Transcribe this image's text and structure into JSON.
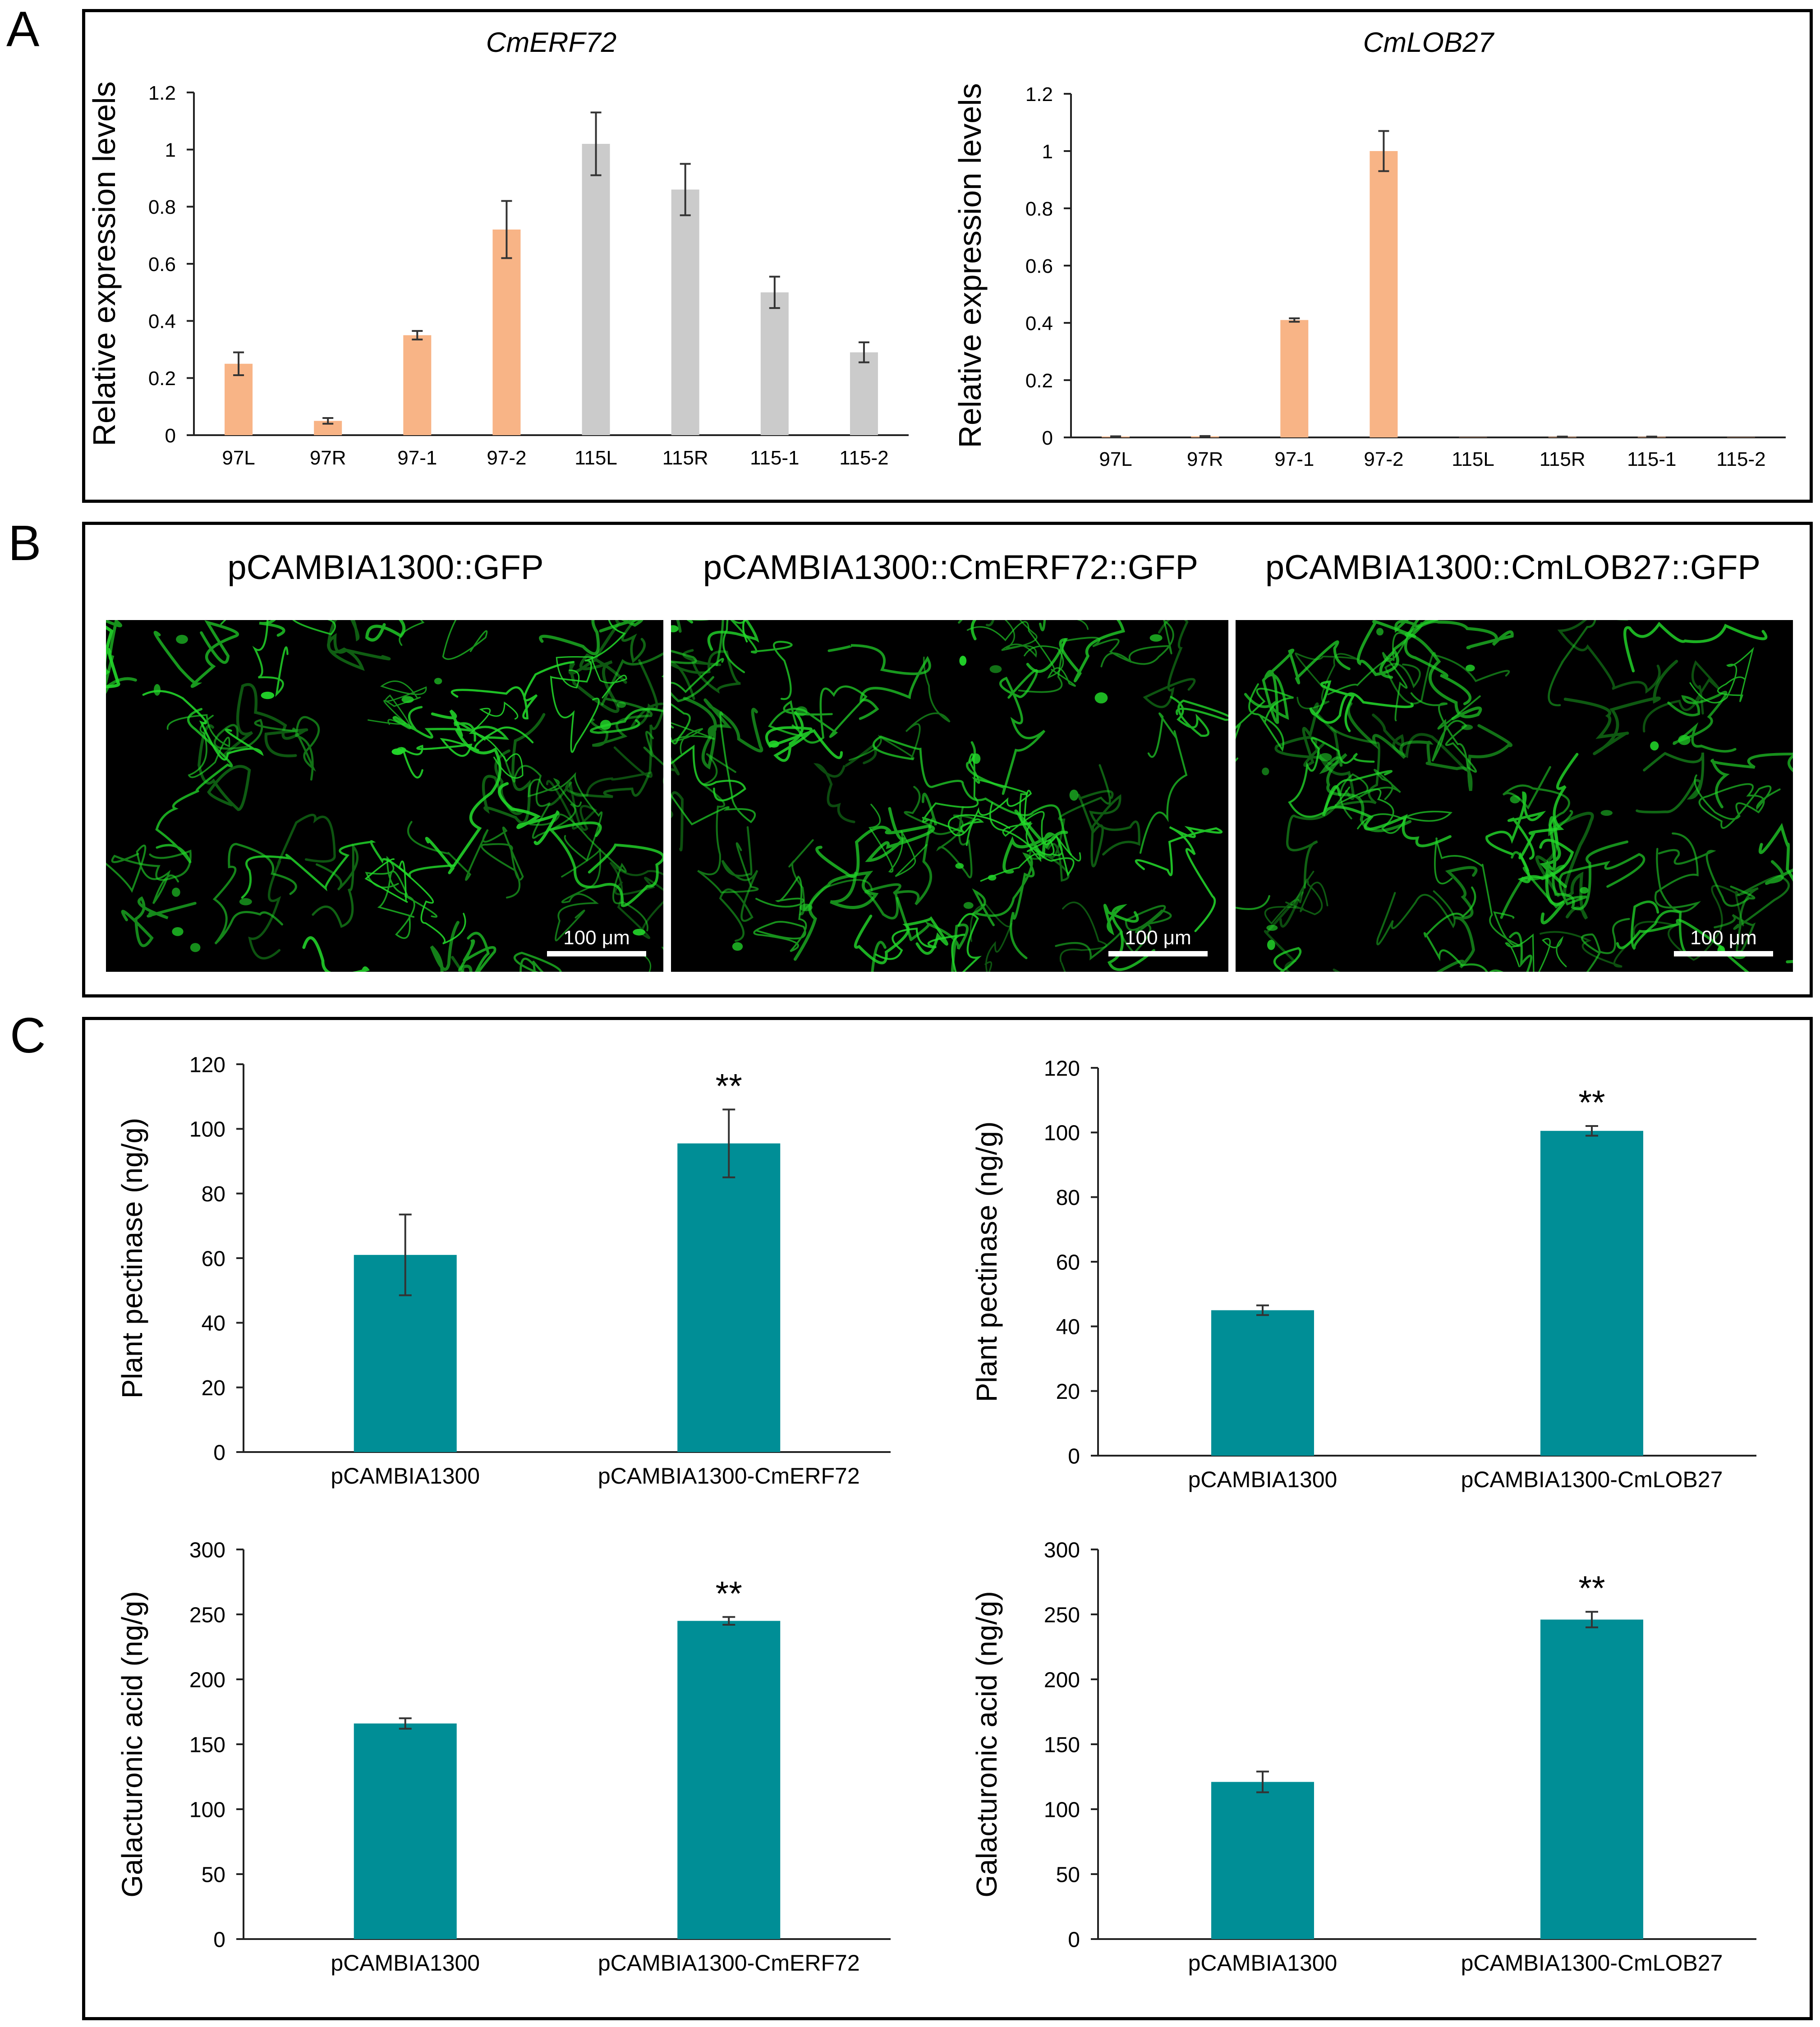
{
  "panel_labels": {
    "A": "A",
    "B": "B",
    "C": "C"
  },
  "colors": {
    "orange": "#F8B486",
    "grey": "#CBCBCB",
    "teal": "#008E96",
    "gfp": "#22d82a"
  },
  "chart_data": [
    {
      "id": "A1",
      "type": "bar",
      "title": "CmERF72",
      "xlabel": "",
      "ylabel": "Relative expression levels",
      "ylim": [
        0,
        1.2
      ],
      "yticks": [
        0,
        0.2,
        0.4,
        0.6,
        0.8,
        1,
        1.2
      ],
      "ytick_labels": [
        "0",
        "0.2",
        "0.4",
        "0.6",
        "0.8",
        "1",
        "1.2"
      ],
      "categories": [
        "97L",
        "97R",
        "97-1",
        "97-2",
        "115L",
        "115R",
        "115-1",
        "115-2"
      ],
      "values": [
        0.25,
        0.05,
        0.35,
        0.72,
        1.02,
        0.86,
        0.5,
        0.29
      ],
      "errors": [
        0.04,
        0.01,
        0.015,
        0.1,
        0.11,
        0.09,
        0.055,
        0.035
      ],
      "bar_colors": [
        "orange",
        "orange",
        "orange",
        "orange",
        "grey",
        "grey",
        "grey",
        "grey"
      ],
      "annotations": []
    },
    {
      "id": "A2",
      "type": "bar",
      "title": "CmLOB27",
      "xlabel": "",
      "ylabel": "Relative expression levels",
      "ylim": [
        0,
        1.2
      ],
      "yticks": [
        0,
        0.2,
        0.4,
        0.6,
        0.8,
        1,
        1.2
      ],
      "ytick_labels": [
        "0",
        "0.2",
        "0.4",
        "0.6",
        "0.8",
        "1",
        "1.2"
      ],
      "categories": [
        "97L",
        "97R",
        "97-1",
        "97-2",
        "115L",
        "115R",
        "115-1",
        "115-2"
      ],
      "values": [
        0.003,
        0.004,
        0.41,
        1.0,
        0.001,
        0.002,
        0.002,
        0.001
      ],
      "errors": [
        0.001,
        0.001,
        0.006,
        0.07,
        0.0,
        0.001,
        0.001,
        0.0
      ],
      "bar_colors": [
        "orange",
        "orange",
        "orange",
        "orange",
        "orange",
        "orange",
        "orange",
        "orange"
      ],
      "annotations": []
    },
    {
      "id": "C1",
      "type": "bar",
      "title": "",
      "xlabel": "",
      "ylabel": "Plant pectinase (ng/g)",
      "ylim": [
        0,
        120
      ],
      "yticks": [
        0,
        20,
        40,
        60,
        80,
        100,
        120
      ],
      "ytick_labels": [
        "0",
        "20",
        "40",
        "60",
        "80",
        "100",
        "120"
      ],
      "categories": [
        "pCAMBIA1300",
        "pCAMBIA1300-CmERF72"
      ],
      "values": [
        61,
        95.5
      ],
      "errors": [
        12.5,
        10.5
      ],
      "bar_colors": [
        "teal",
        "teal"
      ],
      "annotations": [
        "",
        "**"
      ]
    },
    {
      "id": "C2",
      "type": "bar",
      "title": "",
      "xlabel": "",
      "ylabel": "Plant pectinase (ng/g)",
      "ylim": [
        0,
        120
      ],
      "yticks": [
        0,
        20,
        40,
        60,
        80,
        100,
        120
      ],
      "ytick_labels": [
        "0",
        "20",
        "40",
        "60",
        "80",
        "100",
        "120"
      ],
      "categories": [
        "pCAMBIA1300",
        "pCAMBIA1300-CmLOB27"
      ],
      "values": [
        45,
        100.5
      ],
      "errors": [
        1.5,
        1.5
      ],
      "bar_colors": [
        "teal",
        "teal"
      ],
      "annotations": [
        "",
        "**"
      ]
    },
    {
      "id": "C3",
      "type": "bar",
      "title": "",
      "xlabel": "",
      "ylabel": "Galacturonic acid (ng/g)",
      "ylim": [
        0,
        300
      ],
      "yticks": [
        0,
        50,
        100,
        150,
        200,
        250,
        300
      ],
      "ytick_labels": [
        "0",
        "50",
        "100",
        "150",
        "200",
        "250",
        "300"
      ],
      "categories": [
        "pCAMBIA1300",
        "pCAMBIA1300-CmERF72"
      ],
      "values": [
        166,
        245
      ],
      "errors": [
        4,
        3
      ],
      "bar_colors": [
        "teal",
        "teal"
      ],
      "annotations": [
        "",
        "**"
      ]
    },
    {
      "id": "C4",
      "type": "bar",
      "title": "",
      "xlabel": "",
      "ylabel": "Galacturonic acid (ng/g)",
      "ylim": [
        0,
        300
      ],
      "yticks": [
        0,
        50,
        100,
        150,
        200,
        250,
        300
      ],
      "ytick_labels": [
        "0",
        "50",
        "100",
        "150",
        "200",
        "250",
        "300"
      ],
      "categories": [
        "pCAMBIA1300",
        "pCAMBIA1300-CmLOB27"
      ],
      "values": [
        121,
        246
      ],
      "errors": [
        8,
        6
      ],
      "bar_colors": [
        "teal",
        "teal"
      ],
      "annotations": [
        "",
        "**"
      ]
    }
  ],
  "microscopy": {
    "images": [
      {
        "title": "pCAMBIA1300::GFP",
        "scale_bar": "100 μm"
      },
      {
        "title": "pCAMBIA1300::CmERF72::GFP",
        "scale_bar": "100 μm"
      },
      {
        "title": "pCAMBIA1300::CmLOB27::GFP",
        "scale_bar": "100 μm"
      }
    ]
  }
}
